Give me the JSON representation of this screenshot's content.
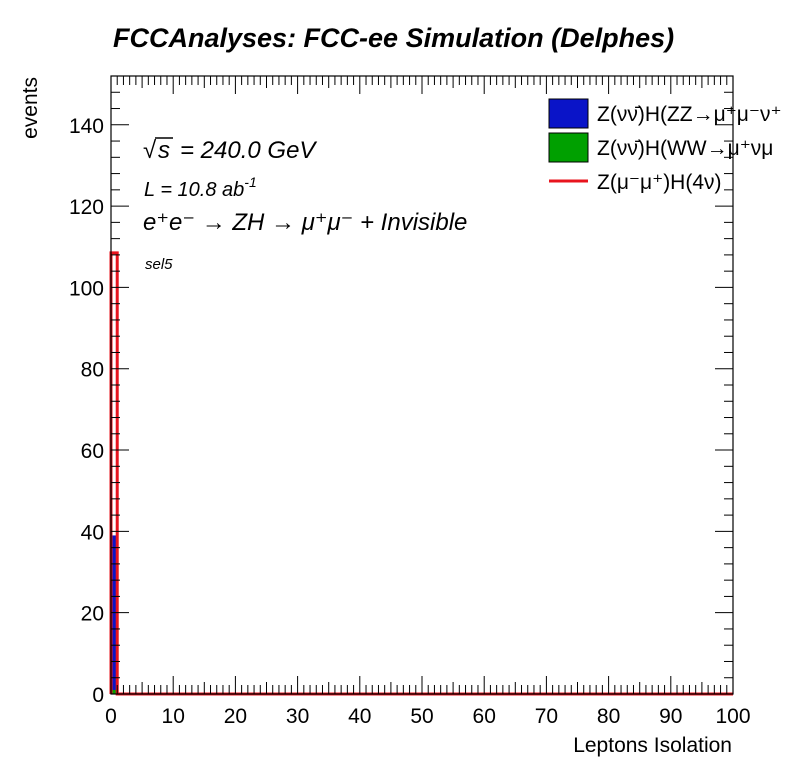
{
  "chart_data": {
    "type": "histogram",
    "title": "FCCAnalyses: FCC-ee Simulation (Delphes)",
    "xlabel": "Leptons Isolation",
    "ylabel": "events",
    "xlim": [
      0,
      100
    ],
    "ylim": [
      0,
      152
    ],
    "x_ticks": [
      0,
      10,
      20,
      30,
      40,
      50,
      60,
      70,
      80,
      90,
      100
    ],
    "y_ticks": [
      0,
      20,
      40,
      60,
      80,
      100,
      120,
      140
    ],
    "annotations": {
      "sqrt_s": "s",
      "energy": "= 240.0 GeV",
      "lumi_prefix": "L = 10.8 ab",
      "lumi_exp": "-1",
      "process": "e⁺e⁻ → ZH → μ⁺μ⁻ + Invisible",
      "selection": "sel5"
    },
    "series": [
      {
        "name": "Z(νν̄)H(ZZ→μ⁺μ⁻ν⁺",
        "style": "filled",
        "color": "#0a14c8",
        "bins": [
          {
            "x0": 0,
            "x1": 1,
            "value": 39
          }
        ]
      },
      {
        "name": "Z(νν̄)H(WW→μ⁺νμ",
        "style": "filled",
        "color": "#00a000",
        "bins": [
          {
            "x0": 0,
            "x1": 1,
            "value": 1
          }
        ]
      },
      {
        "name": "Z(μ⁻μ⁺)H(4ν)",
        "style": "line",
        "color": "#e8141e",
        "bins": [
          {
            "x0": 0,
            "x1": 1,
            "value": 108.5
          }
        ]
      }
    ],
    "legend_position": "top-right",
    "grid": false
  }
}
